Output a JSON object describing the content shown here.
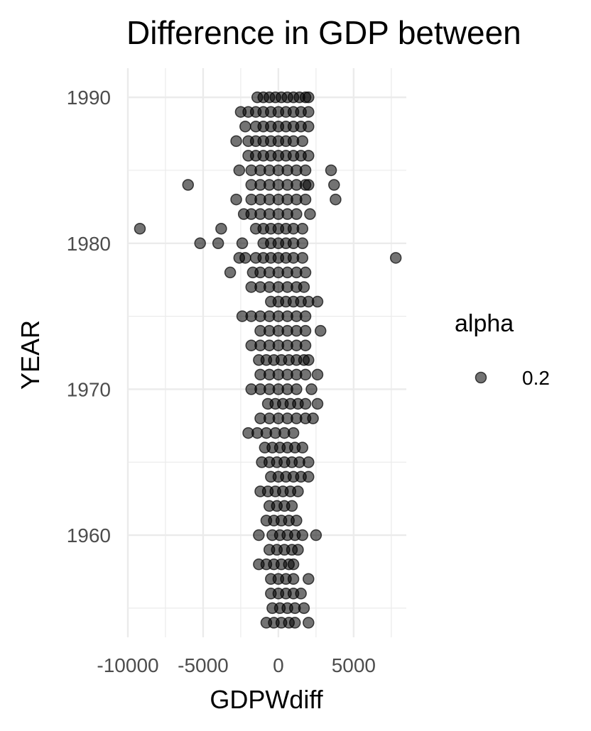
{
  "chart_data": {
    "type": "scatter",
    "title": "Difference in GDP between",
    "xlabel": "GDPWdiff",
    "ylabel": "YEAR",
    "xlim": [
      -10000,
      8500
    ],
    "ylim": [
      1953,
      1992
    ],
    "x_ticks": [
      -10000,
      -5000,
      0,
      5000
    ],
    "x_tick_labels": [
      "-10000",
      "-5000",
      "0",
      "5000"
    ],
    "y_ticks": [
      1960,
      1970,
      1980,
      1990
    ],
    "y_tick_labels": [
      "1960",
      "1970",
      "1980",
      "1990"
    ],
    "grid": true,
    "legend": {
      "title": "alpha",
      "label": "0.2",
      "position": "right"
    },
    "point_color": "#000000",
    "point_alpha": 0.55,
    "series": [
      {
        "points": [
          {
            "x": -1400,
            "y": 1990
          },
          {
            "x": -1000,
            "y": 1990
          },
          {
            "x": -600,
            "y": 1990
          },
          {
            "x": -200,
            "y": 1990
          },
          {
            "x": 200,
            "y": 1990
          },
          {
            "x": 600,
            "y": 1990
          },
          {
            "x": 1000,
            "y": 1990
          },
          {
            "x": 1400,
            "y": 1990
          },
          {
            "x": 1800,
            "y": 1990
          },
          {
            "x": 2000,
            "y": 1990
          },
          {
            "x": -2500,
            "y": 1989
          },
          {
            "x": -2000,
            "y": 1989
          },
          {
            "x": -1500,
            "y": 1989
          },
          {
            "x": -1000,
            "y": 1989
          },
          {
            "x": -500,
            "y": 1989
          },
          {
            "x": 0,
            "y": 1989
          },
          {
            "x": 500,
            "y": 1989
          },
          {
            "x": 1000,
            "y": 1989
          },
          {
            "x": 1500,
            "y": 1989
          },
          {
            "x": 2000,
            "y": 1989
          },
          {
            "x": -2200,
            "y": 1988
          },
          {
            "x": -1500,
            "y": 1988
          },
          {
            "x": -1000,
            "y": 1988
          },
          {
            "x": -500,
            "y": 1988
          },
          {
            "x": 0,
            "y": 1988
          },
          {
            "x": 500,
            "y": 1988
          },
          {
            "x": 1000,
            "y": 1988
          },
          {
            "x": 1500,
            "y": 1988
          },
          {
            "x": 2000,
            "y": 1988
          },
          {
            "x": -2800,
            "y": 1987
          },
          {
            "x": -2000,
            "y": 1987
          },
          {
            "x": -1500,
            "y": 1987
          },
          {
            "x": -1000,
            "y": 1987
          },
          {
            "x": -500,
            "y": 1987
          },
          {
            "x": 0,
            "y": 1987
          },
          {
            "x": 500,
            "y": 1987
          },
          {
            "x": 1000,
            "y": 1987
          },
          {
            "x": 1600,
            "y": 1987
          },
          {
            "x": -2000,
            "y": 1986
          },
          {
            "x": -1500,
            "y": 1986
          },
          {
            "x": -1000,
            "y": 1986
          },
          {
            "x": -500,
            "y": 1986
          },
          {
            "x": 0,
            "y": 1986
          },
          {
            "x": 500,
            "y": 1986
          },
          {
            "x": 1000,
            "y": 1986
          },
          {
            "x": 1500,
            "y": 1986
          },
          {
            "x": 2000,
            "y": 1986
          },
          {
            "x": -2600,
            "y": 1985
          },
          {
            "x": -1800,
            "y": 1985
          },
          {
            "x": -1200,
            "y": 1985
          },
          {
            "x": -600,
            "y": 1985
          },
          {
            "x": 0,
            "y": 1985
          },
          {
            "x": 600,
            "y": 1985
          },
          {
            "x": 1200,
            "y": 1985
          },
          {
            "x": 1800,
            "y": 1985
          },
          {
            "x": 3500,
            "y": 1985
          },
          {
            "x": -6000,
            "y": 1984
          },
          {
            "x": -1800,
            "y": 1984
          },
          {
            "x": -1200,
            "y": 1984
          },
          {
            "x": -600,
            "y": 1984
          },
          {
            "x": 0,
            "y": 1984
          },
          {
            "x": 600,
            "y": 1984
          },
          {
            "x": 1200,
            "y": 1984
          },
          {
            "x": 1800,
            "y": 1984
          },
          {
            "x": 2000,
            "y": 1984
          },
          {
            "x": 3700,
            "y": 1984
          },
          {
            "x": -2800,
            "y": 1983
          },
          {
            "x": -1800,
            "y": 1983
          },
          {
            "x": -1200,
            "y": 1983
          },
          {
            "x": -600,
            "y": 1983
          },
          {
            "x": 0,
            "y": 1983
          },
          {
            "x": 600,
            "y": 1983
          },
          {
            "x": 1200,
            "y": 1983
          },
          {
            "x": 1800,
            "y": 1983
          },
          {
            "x": 3800,
            "y": 1983
          },
          {
            "x": -2300,
            "y": 1982
          },
          {
            "x": -1800,
            "y": 1982
          },
          {
            "x": -1200,
            "y": 1982
          },
          {
            "x": -600,
            "y": 1982
          },
          {
            "x": 0,
            "y": 1982
          },
          {
            "x": 600,
            "y": 1982
          },
          {
            "x": 1200,
            "y": 1982
          },
          {
            "x": 2100,
            "y": 1982
          },
          {
            "x": -9200,
            "y": 1981
          },
          {
            "x": -3800,
            "y": 1981
          },
          {
            "x": -1500,
            "y": 1981
          },
          {
            "x": -1000,
            "y": 1981
          },
          {
            "x": -500,
            "y": 1981
          },
          {
            "x": 0,
            "y": 1981
          },
          {
            "x": 500,
            "y": 1981
          },
          {
            "x": 1000,
            "y": 1981
          },
          {
            "x": 1600,
            "y": 1981
          },
          {
            "x": -5200,
            "y": 1980
          },
          {
            "x": -4000,
            "y": 1980
          },
          {
            "x": -2400,
            "y": 1980
          },
          {
            "x": -1000,
            "y": 1980
          },
          {
            "x": -500,
            "y": 1980
          },
          {
            "x": 0,
            "y": 1980
          },
          {
            "x": 500,
            "y": 1980
          },
          {
            "x": 1000,
            "y": 1980
          },
          {
            "x": 1600,
            "y": 1980
          },
          {
            "x": -2600,
            "y": 1979
          },
          {
            "x": -2200,
            "y": 1979
          },
          {
            "x": -1500,
            "y": 1979
          },
          {
            "x": -1000,
            "y": 1979
          },
          {
            "x": -500,
            "y": 1979
          },
          {
            "x": 0,
            "y": 1979
          },
          {
            "x": 500,
            "y": 1979
          },
          {
            "x": 1000,
            "y": 1979
          },
          {
            "x": 1600,
            "y": 1979
          },
          {
            "x": 7800,
            "y": 1979
          },
          {
            "x": -3200,
            "y": 1978
          },
          {
            "x": -1700,
            "y": 1978
          },
          {
            "x": -1200,
            "y": 1978
          },
          {
            "x": -600,
            "y": 1978
          },
          {
            "x": 0,
            "y": 1978
          },
          {
            "x": 600,
            "y": 1978
          },
          {
            "x": 1200,
            "y": 1978
          },
          {
            "x": 1800,
            "y": 1978
          },
          {
            "x": -1800,
            "y": 1977
          },
          {
            "x": -1200,
            "y": 1977
          },
          {
            "x": -600,
            "y": 1977
          },
          {
            "x": 0,
            "y": 1977
          },
          {
            "x": 600,
            "y": 1977
          },
          {
            "x": 1200,
            "y": 1977
          },
          {
            "x": 1700,
            "y": 1977
          },
          {
            "x": -500,
            "y": 1976
          },
          {
            "x": 0,
            "y": 1976
          },
          {
            "x": 500,
            "y": 1976
          },
          {
            "x": 1000,
            "y": 1976
          },
          {
            "x": 1500,
            "y": 1976
          },
          {
            "x": 2000,
            "y": 1976
          },
          {
            "x": 2600,
            "y": 1976
          },
          {
            "x": -2400,
            "y": 1975
          },
          {
            "x": -1800,
            "y": 1975
          },
          {
            "x": -1200,
            "y": 1975
          },
          {
            "x": -600,
            "y": 1975
          },
          {
            "x": 0,
            "y": 1975
          },
          {
            "x": 600,
            "y": 1975
          },
          {
            "x": 1200,
            "y": 1975
          },
          {
            "x": 1800,
            "y": 1975
          },
          {
            "x": -1200,
            "y": 1974
          },
          {
            "x": -600,
            "y": 1974
          },
          {
            "x": 0,
            "y": 1974
          },
          {
            "x": 600,
            "y": 1974
          },
          {
            "x": 1200,
            "y": 1974
          },
          {
            "x": 1800,
            "y": 1974
          },
          {
            "x": 2800,
            "y": 1974
          },
          {
            "x": -1800,
            "y": 1973
          },
          {
            "x": -1200,
            "y": 1973
          },
          {
            "x": -600,
            "y": 1973
          },
          {
            "x": 0,
            "y": 1973
          },
          {
            "x": 600,
            "y": 1973
          },
          {
            "x": 1200,
            "y": 1973
          },
          {
            "x": 1800,
            "y": 1973
          },
          {
            "x": -1300,
            "y": 1972
          },
          {
            "x": -800,
            "y": 1972
          },
          {
            "x": -300,
            "y": 1972
          },
          {
            "x": 200,
            "y": 1972
          },
          {
            "x": 700,
            "y": 1972
          },
          {
            "x": 1200,
            "y": 1972
          },
          {
            "x": 1700,
            "y": 1972
          },
          {
            "x": 2000,
            "y": 1972
          },
          {
            "x": -1200,
            "y": 1971
          },
          {
            "x": -600,
            "y": 1971
          },
          {
            "x": 0,
            "y": 1971
          },
          {
            "x": 600,
            "y": 1971
          },
          {
            "x": 1200,
            "y": 1971
          },
          {
            "x": 1800,
            "y": 1971
          },
          {
            "x": 2600,
            "y": 1971
          },
          {
            "x": -1800,
            "y": 1970
          },
          {
            "x": -1200,
            "y": 1970
          },
          {
            "x": -600,
            "y": 1970
          },
          {
            "x": 0,
            "y": 1970
          },
          {
            "x": 600,
            "y": 1970
          },
          {
            "x": 1200,
            "y": 1970
          },
          {
            "x": 2200,
            "y": 1970
          },
          {
            "x": -700,
            "y": 1969
          },
          {
            "x": -200,
            "y": 1969
          },
          {
            "x": 300,
            "y": 1969
          },
          {
            "x": 800,
            "y": 1969
          },
          {
            "x": 1300,
            "y": 1969
          },
          {
            "x": 1800,
            "y": 1969
          },
          {
            "x": 2600,
            "y": 1969
          },
          {
            "x": -1200,
            "y": 1968
          },
          {
            "x": -600,
            "y": 1968
          },
          {
            "x": 0,
            "y": 1968
          },
          {
            "x": 600,
            "y": 1968
          },
          {
            "x": 1200,
            "y": 1968
          },
          {
            "x": 1800,
            "y": 1968
          },
          {
            "x": 2300,
            "y": 1968
          },
          {
            "x": -2000,
            "y": 1967
          },
          {
            "x": -1400,
            "y": 1967
          },
          {
            "x": -800,
            "y": 1967
          },
          {
            "x": -200,
            "y": 1967
          },
          {
            "x": 400,
            "y": 1967
          },
          {
            "x": 1000,
            "y": 1967
          },
          {
            "x": -900,
            "y": 1966
          },
          {
            "x": -400,
            "y": 1966
          },
          {
            "x": 100,
            "y": 1966
          },
          {
            "x": 600,
            "y": 1966
          },
          {
            "x": 1100,
            "y": 1966
          },
          {
            "x": 1600,
            "y": 1966
          },
          {
            "x": -1100,
            "y": 1965
          },
          {
            "x": -600,
            "y": 1965
          },
          {
            "x": -100,
            "y": 1965
          },
          {
            "x": 400,
            "y": 1965
          },
          {
            "x": 900,
            "y": 1965
          },
          {
            "x": 1400,
            "y": 1965
          },
          {
            "x": 2000,
            "y": 1965
          },
          {
            "x": -500,
            "y": 1964
          },
          {
            "x": 0,
            "y": 1964
          },
          {
            "x": 500,
            "y": 1964
          },
          {
            "x": 1000,
            "y": 1964
          },
          {
            "x": 1500,
            "y": 1964
          },
          {
            "x": 2000,
            "y": 1964
          },
          {
            "x": -1200,
            "y": 1963
          },
          {
            "x": -700,
            "y": 1963
          },
          {
            "x": -200,
            "y": 1963
          },
          {
            "x": 300,
            "y": 1963
          },
          {
            "x": 800,
            "y": 1963
          },
          {
            "x": 1300,
            "y": 1963
          },
          {
            "x": -600,
            "y": 1962
          },
          {
            "x": -100,
            "y": 1962
          },
          {
            "x": 400,
            "y": 1962
          },
          {
            "x": 900,
            "y": 1962
          },
          {
            "x": -800,
            "y": 1961
          },
          {
            "x": -300,
            "y": 1961
          },
          {
            "x": 200,
            "y": 1961
          },
          {
            "x": 700,
            "y": 1961
          },
          {
            "x": 1200,
            "y": 1961
          },
          {
            "x": -1300,
            "y": 1960
          },
          {
            "x": -400,
            "y": 1960
          },
          {
            "x": 100,
            "y": 1960
          },
          {
            "x": 600,
            "y": 1960
          },
          {
            "x": 1100,
            "y": 1960
          },
          {
            "x": 1600,
            "y": 1960
          },
          {
            "x": 2500,
            "y": 1960
          },
          {
            "x": -600,
            "y": 1959
          },
          {
            "x": -100,
            "y": 1959
          },
          {
            "x": 400,
            "y": 1959
          },
          {
            "x": 900,
            "y": 1959
          },
          {
            "x": 1300,
            "y": 1959
          },
          {
            "x": -1300,
            "y": 1958
          },
          {
            "x": -800,
            "y": 1958
          },
          {
            "x": -300,
            "y": 1958
          },
          {
            "x": 200,
            "y": 1958
          },
          {
            "x": 700,
            "y": 1958
          },
          {
            "x": 1000,
            "y": 1958
          },
          {
            "x": -500,
            "y": 1957
          },
          {
            "x": 0,
            "y": 1957
          },
          {
            "x": 500,
            "y": 1957
          },
          {
            "x": 1000,
            "y": 1957
          },
          {
            "x": 2000,
            "y": 1957
          },
          {
            "x": -500,
            "y": 1956
          },
          {
            "x": 0,
            "y": 1956
          },
          {
            "x": 500,
            "y": 1956
          },
          {
            "x": 1000,
            "y": 1956
          },
          {
            "x": 1500,
            "y": 1956
          },
          {
            "x": -400,
            "y": 1955
          },
          {
            "x": 100,
            "y": 1955
          },
          {
            "x": 600,
            "y": 1955
          },
          {
            "x": 1100,
            "y": 1955
          },
          {
            "x": 1700,
            "y": 1955
          },
          {
            "x": -800,
            "y": 1954
          },
          {
            "x": -300,
            "y": 1954
          },
          {
            "x": 200,
            "y": 1954
          },
          {
            "x": 700,
            "y": 1954
          },
          {
            "x": 1100,
            "y": 1954
          },
          {
            "x": 2000,
            "y": 1954
          }
        ]
      }
    ]
  }
}
